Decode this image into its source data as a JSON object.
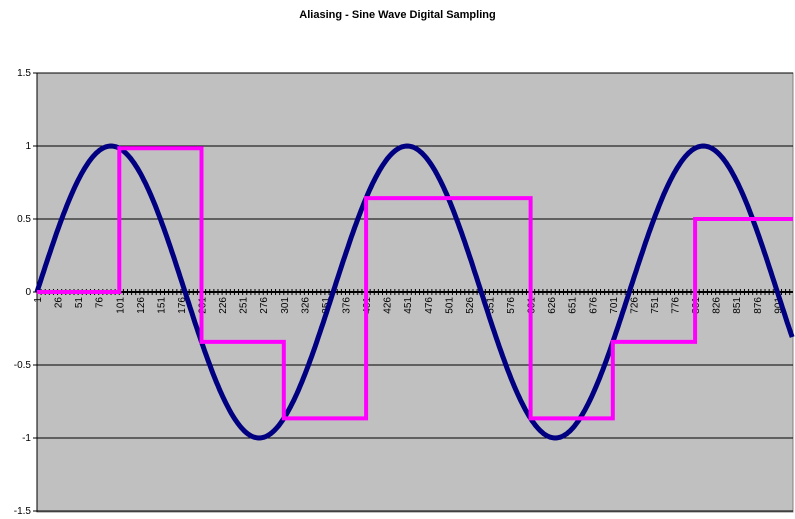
{
  "chart_data": {
    "type": "line",
    "title": "Aliasing - Sine Wave Digital Sampling",
    "xlabel": "",
    "ylabel": "",
    "ylim": [
      -1.5,
      1.5
    ],
    "xlim": [
      1,
      920
    ],
    "y_ticks": [
      "1.5",
      "1",
      "0.5",
      "0",
      "-0.5",
      "-1",
      "-1.5"
    ],
    "y_tick_values": [
      1.5,
      1,
      0.5,
      0,
      -0.5,
      -1,
      -1.5
    ],
    "x_tick_values": [
      1,
      26,
      51,
      76,
      101,
      126,
      151,
      176,
      201,
      226,
      251,
      276,
      301,
      326,
      351,
      376,
      401,
      426,
      451,
      476,
      501,
      526,
      551,
      576,
      601,
      626,
      651,
      676,
      701,
      726,
      751,
      776,
      801,
      826,
      851,
      876,
      901
    ],
    "grid": true,
    "plot_background": "#c0c0c0",
    "series": [
      {
        "color": "#000080",
        "function": "sine",
        "amplitude": 1,
        "period": 360,
        "phase_start_x": 1,
        "x_range": [
          1,
          920
        ]
      },
      {
        "color": "#ff00ff",
        "steps": [
          {
            "x_start": 1,
            "x_end": 101,
            "y": 0
          },
          {
            "x_start": 101,
            "x_end": 201,
            "y": 0.985
          },
          {
            "x_start": 201,
            "x_end": 301,
            "y": -0.342
          },
          {
            "x_start": 301,
            "x_end": 401,
            "y": -0.866
          },
          {
            "x_start": 401,
            "x_end": 601,
            "y": 0.643
          },
          {
            "x_start": 601,
            "x_end": 701,
            "y": -0.866
          },
          {
            "x_start": 701,
            "x_end": 801,
            "y": -0.342
          },
          {
            "x_start": 801,
            "x_end": 920,
            "y": 0.5
          }
        ]
      }
    ]
  }
}
